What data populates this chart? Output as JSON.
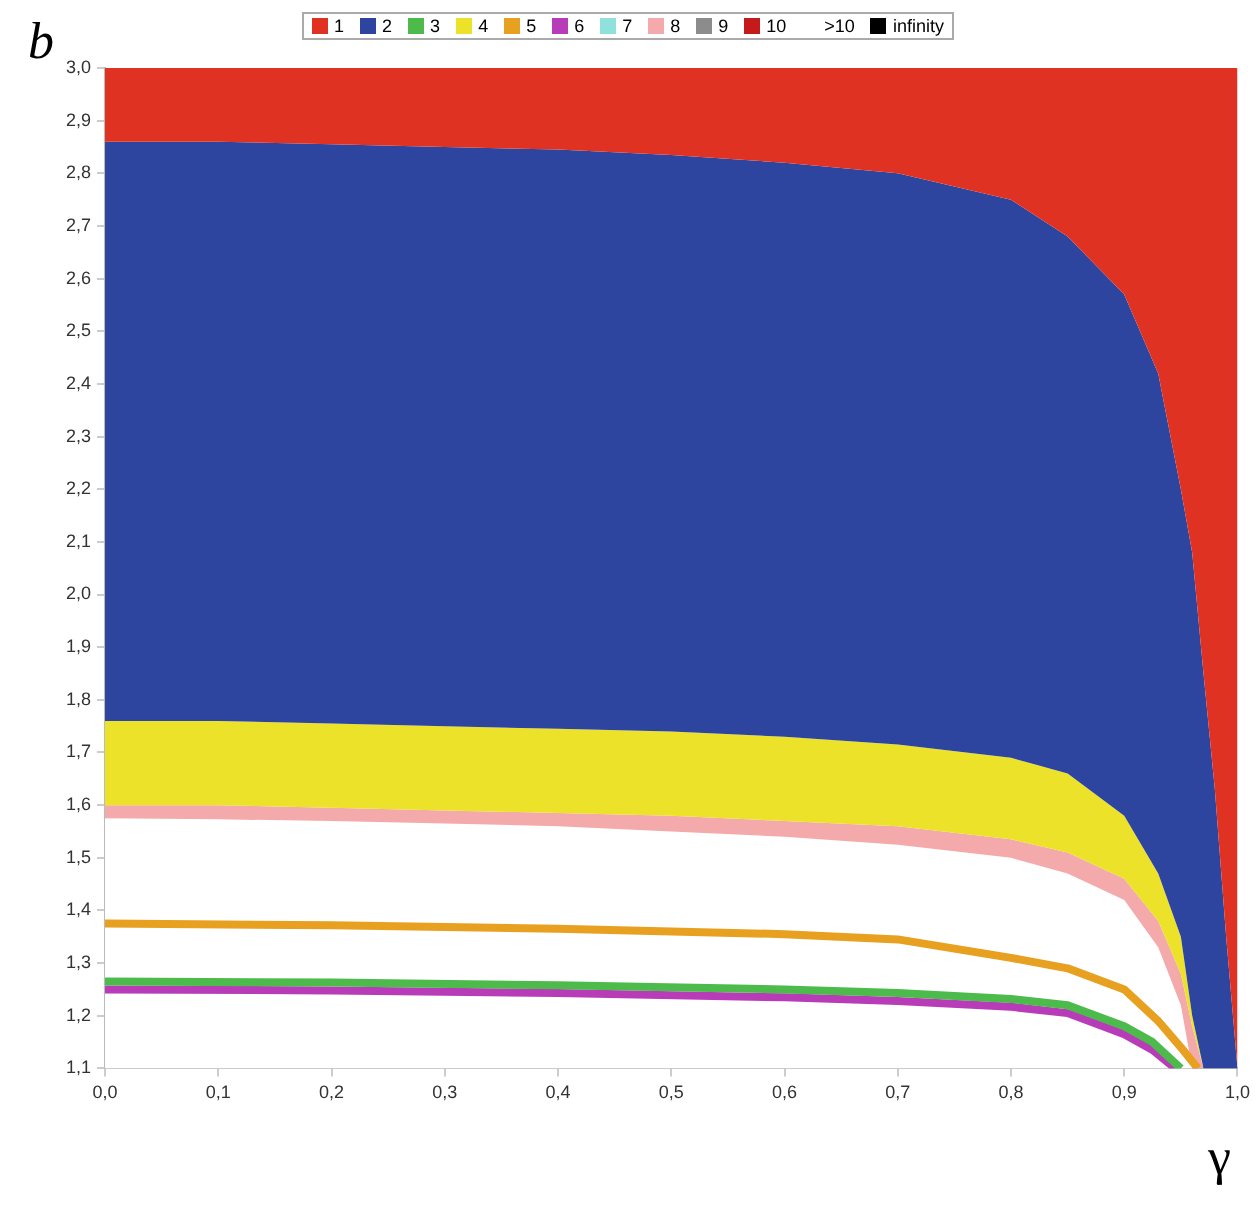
{
  "chart_data": {
    "type": "area",
    "xlabel": "γ",
    "ylabel": "b",
    "legend": "top",
    "marker": "none",
    "grid": false,
    "x": [
      0,
      0.1,
      0.2,
      0.3,
      0.4,
      0.5,
      0.6,
      0.7,
      0.8,
      0.85,
      0.9,
      0.93,
      0.95,
      0.96,
      0.97,
      0.98,
      0.99,
      1.0
    ],
    "xlim": [
      0,
      1
    ],
    "xticks": [
      {
        "value": 0,
        "label": "0,0"
      },
      {
        "value": 0.1,
        "label": "0,1"
      },
      {
        "value": 0.2,
        "label": "0,2"
      },
      {
        "value": 0.3,
        "label": "0,3"
      },
      {
        "value": 0.4,
        "label": "0,4"
      },
      {
        "value": 0.5,
        "label": "0,5"
      },
      {
        "value": 0.6,
        "label": "0,6"
      },
      {
        "value": 0.7,
        "label": "0,7"
      },
      {
        "value": 0.8,
        "label": "0,8"
      },
      {
        "value": 0.9,
        "label": "0,9"
      },
      {
        "value": 1.0,
        "label": "1,0"
      }
    ],
    "ylim": [
      1.1,
      3.0
    ],
    "yticks": [
      {
        "value": 1.1,
        "label": "1,1"
      },
      {
        "value": 1.2,
        "label": "1,2"
      },
      {
        "value": 1.3,
        "label": "1,3"
      },
      {
        "value": 1.4,
        "label": "1,4"
      },
      {
        "value": 1.5,
        "label": "1,5"
      },
      {
        "value": 1.6,
        "label": "1,6"
      },
      {
        "value": 1.7,
        "label": "1,7"
      },
      {
        "value": 1.8,
        "label": "1,8"
      },
      {
        "value": 1.9,
        "label": "1,9"
      },
      {
        "value": 2.0,
        "label": "2,0"
      },
      {
        "value": 2.1,
        "label": "2,1"
      },
      {
        "value": 2.2,
        "label": "2,2"
      },
      {
        "value": 2.3,
        "label": "2,3"
      },
      {
        "value": 2.4,
        "label": "2,4"
      },
      {
        "value": 2.5,
        "label": "2,5"
      },
      {
        "value": 2.6,
        "label": "2,6"
      },
      {
        "value": 2.7,
        "label": "2,7"
      },
      {
        "value": 2.8,
        "label": "2,8"
      },
      {
        "value": 2.9,
        "label": "2,9"
      },
      {
        "value": 3.0,
        "label": "3,0"
      }
    ],
    "series": [
      {
        "name": "1",
        "color": "#e03222",
        "values": [
          3.0,
          3.0,
          3.0,
          3.0,
          3.0,
          3.0,
          3.0,
          3.0,
          3.0,
          3.0,
          3.0,
          3.0,
          3.0,
          3.0,
          3.0,
          3.0,
          3.0,
          3.0
        ]
      },
      {
        "name": "2",
        "color": "#2e45a0",
        "values": [
          2.86,
          2.86,
          2.855,
          2.85,
          2.845,
          2.835,
          2.82,
          2.8,
          2.75,
          2.68,
          2.57,
          2.42,
          2.2,
          2.08,
          1.85,
          1.63,
          1.35,
          1.1
        ]
      },
      {
        "name": "3",
        "color": "#4cbb4c",
        "type": "line",
        "x": [
          0,
          0.2,
          0.4,
          0.6,
          0.7,
          0.8,
          0.85,
          0.9,
          0.925,
          0.95
        ],
        "values": [
          1.265,
          1.263,
          1.258,
          1.25,
          1.243,
          1.232,
          1.22,
          1.18,
          1.15,
          1.1
        ]
      },
      {
        "name": "4",
        "color": "#ece22a",
        "values": [
          1.76,
          1.76,
          1.755,
          1.75,
          1.745,
          1.74,
          1.73,
          1.715,
          1.69,
          1.66,
          1.58,
          1.47,
          1.35,
          1.2,
          1.1,
          1.1,
          1.1,
          1.1
        ]
      },
      {
        "name": "5",
        "color": "#e8a020",
        "type": "line",
        "x": [
          0,
          0.2,
          0.4,
          0.6,
          0.7,
          0.8,
          0.85,
          0.9,
          0.93,
          0.95,
          0.965
        ],
        "values": [
          1.375,
          1.372,
          1.365,
          1.355,
          1.345,
          1.31,
          1.29,
          1.25,
          1.19,
          1.14,
          1.1
        ]
      },
      {
        "name": "6",
        "color": "#b83cb8",
        "type": "line",
        "x": [
          0,
          0.2,
          0.4,
          0.6,
          0.7,
          0.8,
          0.85,
          0.9,
          0.925,
          0.945
        ],
        "values": [
          1.25,
          1.248,
          1.243,
          1.235,
          1.228,
          1.217,
          1.205,
          1.165,
          1.135,
          1.1
        ]
      },
      {
        "name": "7",
        "color": "#90e0dc",
        "values": [
          null,
          null,
          null,
          null,
          null,
          null,
          null,
          null,
          null,
          null,
          null,
          null,
          null,
          null,
          null,
          null,
          null,
          null
        ]
      },
      {
        "name": "8",
        "color": "#f4aaaa",
        "values": [
          1.6,
          1.6,
          1.595,
          1.59,
          1.585,
          1.58,
          1.57,
          1.56,
          1.535,
          1.51,
          1.46,
          1.38,
          1.28,
          1.18,
          1.1,
          1.1,
          1.1,
          1.1
        ]
      },
      {
        "name": "9",
        "color": "#8c8c8c",
        "values": [
          null,
          null,
          null,
          null,
          null,
          null,
          null,
          null,
          null,
          null,
          null,
          null,
          null,
          null,
          null,
          null,
          null,
          null
        ]
      },
      {
        "name": "10",
        "color": "#c41a1a",
        "values": [
          null,
          null,
          null,
          null,
          null,
          null,
          null,
          null,
          null,
          null,
          null,
          null,
          null,
          null,
          null,
          null,
          null,
          null
        ]
      },
      {
        "name": ">10",
        "values": [
          null,
          null,
          null,
          null,
          null,
          null,
          null,
          null,
          null,
          null,
          null,
          null,
          null,
          null,
          null,
          null,
          null,
          null
        ]
      },
      {
        "name": "infinity",
        "color": "#000000",
        "values": [
          null,
          null,
          null,
          null,
          null,
          null,
          null,
          null,
          null,
          null,
          null,
          null,
          null,
          null,
          null,
          null,
          null,
          null
        ]
      },
      {
        "color": "#ffffff",
        "values": [
          1.575,
          1.573,
          1.57,
          1.565,
          1.56,
          1.55,
          1.54,
          1.525,
          1.5,
          1.47,
          1.42,
          1.33,
          1.22,
          1.1,
          1.1,
          1.1,
          1.1,
          1.1
        ]
      }
    ]
  }
}
